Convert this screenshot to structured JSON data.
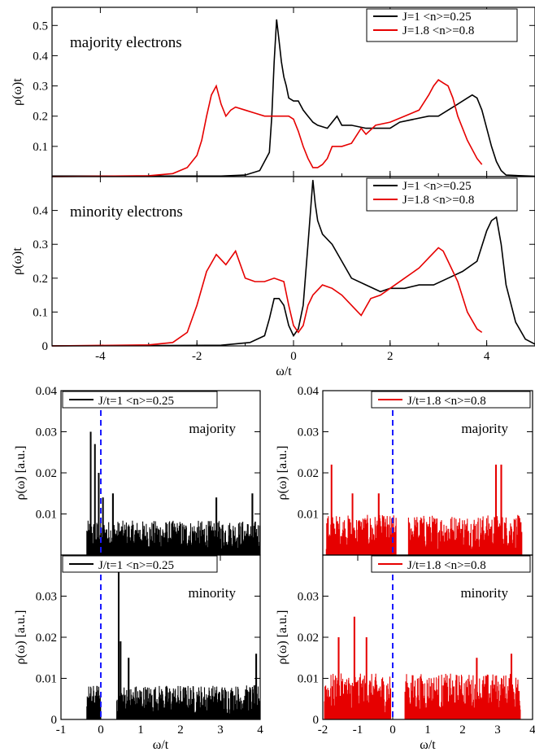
{
  "colors": {
    "black": "#000000",
    "red": "#e60000",
    "dashed": "#1a1aff"
  },
  "chart_data": [
    {
      "type": "line",
      "panel": "top",
      "annotation": "majority electrons",
      "ylabel": "ρ(ω)t",
      "xlabel": "",
      "xlim": [
        -5,
        5
      ],
      "ylim": [
        0,
        0.56
      ],
      "xticks": [
        -4,
        -2,
        0,
        2,
        4
      ],
      "yticks": [
        0.1,
        0.2,
        0.3,
        0.4,
        0.5
      ],
      "ytick_labels": [
        "0.1",
        "0.2",
        "0.3",
        "0.4",
        "0.5"
      ],
      "legend_position": "top-right",
      "series": [
        {
          "name": "J=1     <n>=0.25",
          "color": "#000000",
          "x": [
            -5,
            -1.5,
            -1.0,
            -0.7,
            -0.5,
            -0.45,
            -0.4,
            -0.35,
            -0.3,
            -0.25,
            -0.2,
            -0.15,
            -0.1,
            0,
            0.1,
            0.2,
            0.3,
            0.4,
            0.5,
            0.7,
            0.9,
            1.0,
            1.2,
            1.5,
            1.8,
            2.0,
            2.2,
            2.5,
            2.8,
            3.0,
            3.2,
            3.4,
            3.6,
            3.7,
            3.8,
            3.9,
            4.0,
            4.1,
            4.2,
            4.3,
            4.4,
            5.0
          ],
          "y": [
            0.002,
            0.002,
            0.005,
            0.02,
            0.08,
            0.2,
            0.38,
            0.52,
            0.45,
            0.38,
            0.33,
            0.3,
            0.26,
            0.25,
            0.25,
            0.22,
            0.2,
            0.18,
            0.17,
            0.16,
            0.2,
            0.17,
            0.17,
            0.16,
            0.16,
            0.16,
            0.18,
            0.19,
            0.2,
            0.2,
            0.22,
            0.24,
            0.26,
            0.27,
            0.26,
            0.22,
            0.16,
            0.1,
            0.05,
            0.02,
            0.005,
            0.001
          ]
        },
        {
          "name": "J=1.8  <n>=0.8",
          "color": "#e60000",
          "x": [
            -5,
            -3,
            -2.5,
            -2.2,
            -2.0,
            -1.9,
            -1.8,
            -1.7,
            -1.6,
            -1.5,
            -1.4,
            -1.3,
            -1.2,
            -1.0,
            -0.8,
            -0.6,
            -0.5,
            -0.3,
            -0.1,
            0.0,
            0.1,
            0.2,
            0.3,
            0.4,
            0.5,
            0.6,
            0.7,
            0.8,
            1.0,
            1.2,
            1.4,
            1.5,
            1.7,
            2.0,
            2.3,
            2.6,
            2.8,
            2.9,
            3.0,
            3.1,
            3.2,
            3.3,
            3.4,
            3.6,
            3.8,
            3.9
          ],
          "y": [
            0,
            0.003,
            0.01,
            0.03,
            0.07,
            0.12,
            0.2,
            0.27,
            0.3,
            0.24,
            0.2,
            0.22,
            0.23,
            0.22,
            0.21,
            0.2,
            0.2,
            0.2,
            0.2,
            0.19,
            0.15,
            0.1,
            0.06,
            0.03,
            0.03,
            0.04,
            0.06,
            0.1,
            0.1,
            0.11,
            0.16,
            0.14,
            0.17,
            0.18,
            0.2,
            0.22,
            0.27,
            0.3,
            0.32,
            0.31,
            0.3,
            0.26,
            0.2,
            0.12,
            0.06,
            0.04
          ]
        }
      ]
    },
    {
      "type": "line",
      "panel": "middle",
      "annotation": "minority electrons",
      "ylabel": "ρ(ω)t",
      "xlabel": "ω/t",
      "xlim": [
        -5,
        5
      ],
      "ylim": [
        0,
        0.5
      ],
      "xticks": [
        -4,
        -2,
        0,
        2,
        4
      ],
      "xtick_labels": [
        "-4",
        "-2",
        "0",
        "2",
        "4"
      ],
      "yticks": [
        0,
        0.1,
        0.2,
        0.3,
        0.4
      ],
      "ytick_labels": [
        "0",
        "0.1",
        "0.2",
        "0.3",
        "0.4"
      ],
      "legend_position": "top-right",
      "series": [
        {
          "name": "J=1     <n>=0.25",
          "color": "#000000",
          "x": [
            -5,
            -1.5,
            -0.9,
            -0.6,
            -0.5,
            -0.4,
            -0.3,
            -0.2,
            -0.1,
            0.0,
            0.1,
            0.2,
            0.3,
            0.4,
            0.45,
            0.5,
            0.6,
            0.8,
            1.0,
            1.2,
            1.5,
            1.8,
            2.0,
            2.3,
            2.6,
            2.9,
            3.2,
            3.5,
            3.8,
            4.0,
            4.1,
            4.2,
            4.3,
            4.4,
            4.6,
            4.8,
            5.0
          ],
          "y": [
            0,
            0.002,
            0.01,
            0.03,
            0.08,
            0.14,
            0.14,
            0.12,
            0.06,
            0.03,
            0.05,
            0.12,
            0.3,
            0.49,
            0.42,
            0.37,
            0.33,
            0.3,
            0.25,
            0.2,
            0.18,
            0.16,
            0.17,
            0.17,
            0.18,
            0.18,
            0.2,
            0.22,
            0.25,
            0.34,
            0.37,
            0.38,
            0.3,
            0.18,
            0.07,
            0.02,
            0.005
          ]
        },
        {
          "name": "J=1.8  <n>=0.8",
          "color": "#e60000",
          "x": [
            -5,
            -3,
            -2.5,
            -2.2,
            -2.0,
            -1.8,
            -1.6,
            -1.4,
            -1.2,
            -1.0,
            -0.8,
            -0.6,
            -0.4,
            -0.2,
            -0.1,
            0.0,
            0.1,
            0.2,
            0.3,
            0.4,
            0.6,
            0.8,
            1.0,
            1.2,
            1.4,
            1.6,
            1.8,
            2.0,
            2.3,
            2.6,
            2.8,
            3.0,
            3.1,
            3.2,
            3.4,
            3.6,
            3.8,
            3.9
          ],
          "y": [
            0,
            0.003,
            0.01,
            0.04,
            0.12,
            0.22,
            0.27,
            0.24,
            0.28,
            0.2,
            0.19,
            0.19,
            0.2,
            0.19,
            0.12,
            0.06,
            0.04,
            0.06,
            0.12,
            0.15,
            0.18,
            0.17,
            0.15,
            0.12,
            0.09,
            0.14,
            0.15,
            0.17,
            0.2,
            0.23,
            0.26,
            0.29,
            0.28,
            0.25,
            0.19,
            0.1,
            0.05,
            0.04
          ]
        }
      ]
    },
    {
      "type": "bar",
      "panel": "bottom-left-top",
      "annotation": "majority",
      "legend": "J/t=1  <n>=0.25",
      "color": "#000000",
      "ylabel": "ρ(ω)  [a.u.]",
      "xlim": [
        -1,
        4
      ],
      "ylim": [
        0,
        0.04
      ],
      "yticks": [
        0.01,
        0.02,
        0.03,
        0.04
      ],
      "ytick_labels": [
        "0.01",
        "0.02",
        "0.03",
        "0.04"
      ],
      "support": [
        -0.35,
        4.0
      ],
      "peaks": [
        [
          -0.25,
          0.03
        ],
        [
          -0.15,
          0.027
        ],
        [
          -0.05,
          0.02
        ],
        [
          0.05,
          0.014
        ],
        [
          0.3,
          0.015
        ],
        [
          2.9,
          0.014
        ],
        [
          3.8,
          0.015
        ]
      ],
      "base_level": 0.006,
      "fermi_line": 0
    },
    {
      "type": "bar",
      "panel": "bottom-right-top",
      "annotation": "majority",
      "legend": "J/t=1.8  <n>=0.8",
      "color": "#e60000",
      "ylabel": "ρ(ω)  [a.u.]",
      "xlim": [
        -2,
        4
      ],
      "ylim": [
        0,
        0.04
      ],
      "yticks": [
        0.01,
        0.02,
        0.03,
        0.04
      ],
      "ytick_labels": [
        "0.01",
        "0.02",
        "0.03",
        "0.04"
      ],
      "support": [
        [
          -1.9,
          0.1
        ],
        [
          0.45,
          3.7
        ]
      ],
      "peaks": [
        [
          -1.75,
          0.022
        ],
        [
          -1.15,
          0.015
        ],
        [
          -0.4,
          0.015
        ],
        [
          2.95,
          0.022
        ],
        [
          3.1,
          0.022
        ]
      ],
      "base_level": 0.007,
      "fermi_line": 0
    },
    {
      "type": "bar",
      "panel": "bottom-left-bottom",
      "annotation": "minority",
      "legend": "J/t=1  <n>=0.25",
      "color": "#000000",
      "ylabel": "ρ(ω)    [a.u.]",
      "xlabel": "ω/t",
      "xlim": [
        -1,
        4
      ],
      "ylim": [
        0,
        0.04
      ],
      "xticks": [
        -1,
        0,
        1,
        2,
        3,
        4
      ],
      "xtick_labels": [
        "-1",
        "0",
        "1",
        "2",
        "3",
        "4"
      ],
      "yticks": [
        0,
        0.01,
        0.02,
        0.03
      ],
      "ytick_labels": [
        "0",
        "0.01",
        "0.02",
        "0.03"
      ],
      "support": [
        [
          -0.35,
          0.0
        ],
        [
          0.4,
          4.0
        ]
      ],
      "peaks": [
        [
          0.45,
          0.036
        ],
        [
          0.5,
          0.019
        ],
        [
          0.7,
          0.015
        ],
        [
          3.9,
          0.016
        ]
      ],
      "base_level": 0.006,
      "fermi_line": 0
    },
    {
      "type": "bar",
      "panel": "bottom-right-bottom",
      "annotation": "minority",
      "legend": "J/t=1.8  <n>=0.8",
      "color": "#e60000",
      "ylabel": "ρ(ω)    [a.u.]",
      "xlabel": "ω/t",
      "xlim": [
        -2,
        4
      ],
      "ylim": [
        0,
        0.04
      ],
      "xticks": [
        -2,
        -1,
        0,
        1,
        2,
        3,
        4
      ],
      "xtick_labels": [
        "-2",
        "-1",
        "0",
        "1",
        "2",
        "3",
        "4"
      ],
      "yticks": [
        0,
        0.01,
        0.02,
        0.03
      ],
      "ytick_labels": [
        "0",
        "0.01",
        "0.02",
        "0.03"
      ],
      "support": [
        [
          -1.95,
          -0.05
        ],
        [
          0.35,
          3.65
        ]
      ],
      "peaks": [
        [
          -1.55,
          0.02
        ],
        [
          -1.1,
          0.025
        ],
        [
          -0.75,
          0.02
        ],
        [
          2.4,
          0.015
        ],
        [
          3.4,
          0.016
        ]
      ],
      "base_level": 0.008,
      "fermi_line": 0
    }
  ]
}
